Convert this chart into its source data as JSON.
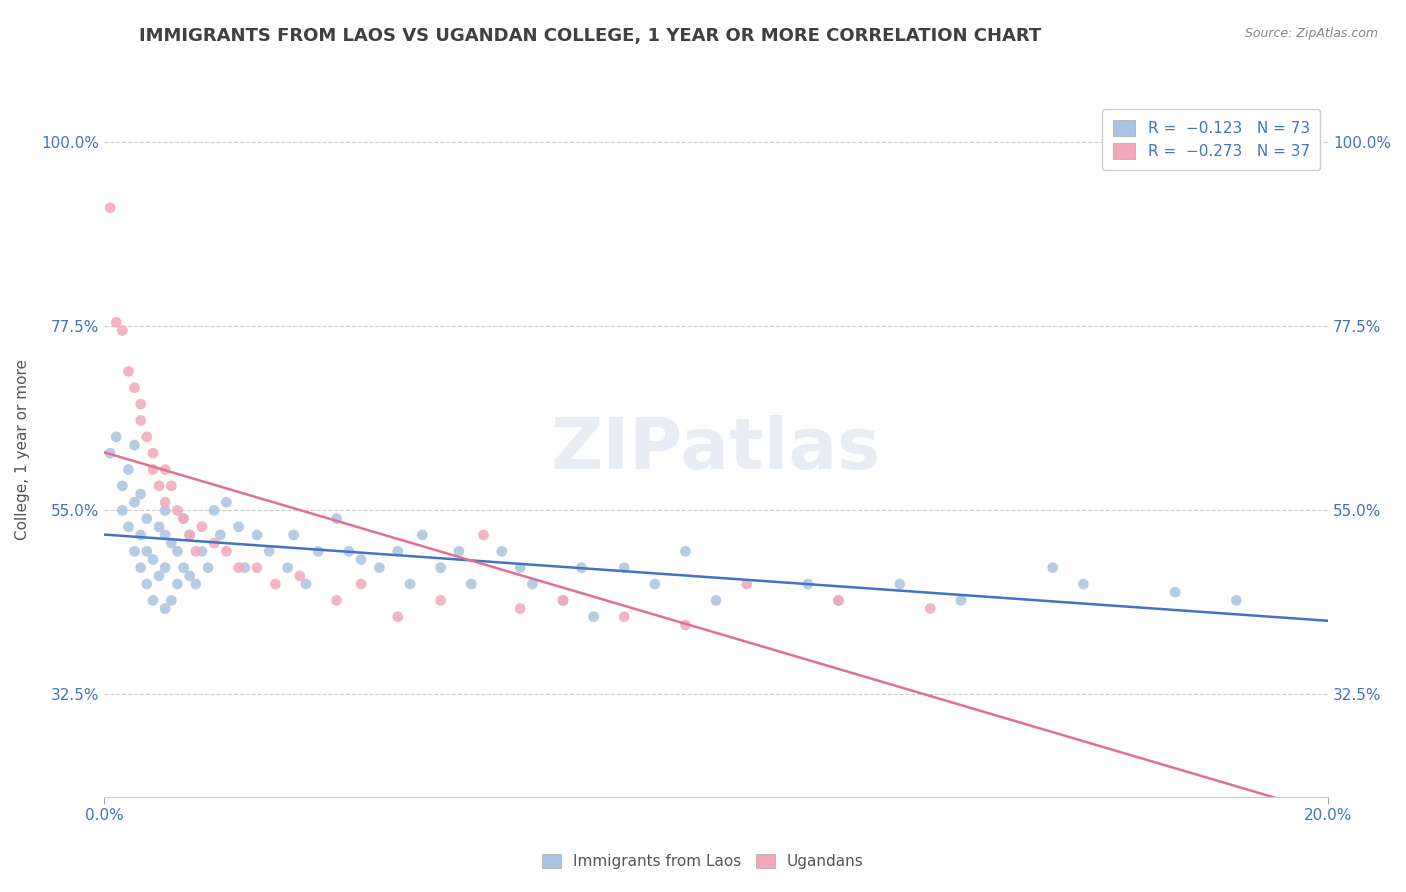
{
  "title": "IMMIGRANTS FROM LAOS VS UGANDAN COLLEGE, 1 YEAR OR MORE CORRELATION CHART",
  "source_text": "Source: ZipAtlas.com",
  "xlabel": "",
  "ylabel": "College, 1 year or more",
  "xlim": [
    0.0,
    0.2
  ],
  "ylim": [
    0.2,
    1.05
  ],
  "xtick_labels": [
    "0.0%",
    "20.0%"
  ],
  "ytick_labels": [
    "32.5%",
    "55.0%",
    "77.5%",
    "100.0%"
  ],
  "ytick_values": [
    0.325,
    0.55,
    0.775,
    1.0
  ],
  "legend_r1": "R = −0.123",
  "legend_n1": "N = 73",
  "legend_r2": "R = −0.273",
  "legend_n2": "N = 37",
  "color_blue": "#a8c4e0",
  "color_pink": "#f4a7b9",
  "line_blue": "#4472c4",
  "line_pink": "#e07090",
  "watermark": "ZIPatlas",
  "title_color": "#404040",
  "axis_color": "#4472c4",
  "background_color": "#ffffff",
  "blue_scatter_x": [
    0.001,
    0.002,
    0.003,
    0.003,
    0.004,
    0.004,
    0.005,
    0.005,
    0.005,
    0.006,
    0.006,
    0.006,
    0.007,
    0.007,
    0.007,
    0.008,
    0.008,
    0.009,
    0.009,
    0.01,
    0.01,
    0.01,
    0.01,
    0.011,
    0.011,
    0.012,
    0.012,
    0.013,
    0.013,
    0.014,
    0.014,
    0.015,
    0.016,
    0.017,
    0.018,
    0.019,
    0.02,
    0.022,
    0.023,
    0.025,
    0.027,
    0.03,
    0.031,
    0.033,
    0.035,
    0.038,
    0.04,
    0.042,
    0.045,
    0.048,
    0.05,
    0.052,
    0.055,
    0.058,
    0.06,
    0.065,
    0.068,
    0.07,
    0.075,
    0.078,
    0.08,
    0.085,
    0.09,
    0.095,
    0.1,
    0.115,
    0.12,
    0.13,
    0.14,
    0.155,
    0.16,
    0.175,
    0.185
  ],
  "blue_scatter_y": [
    0.62,
    0.64,
    0.58,
    0.55,
    0.53,
    0.6,
    0.5,
    0.56,
    0.63,
    0.48,
    0.52,
    0.57,
    0.46,
    0.5,
    0.54,
    0.44,
    0.49,
    0.47,
    0.53,
    0.52,
    0.55,
    0.48,
    0.43,
    0.51,
    0.44,
    0.5,
    0.46,
    0.54,
    0.48,
    0.52,
    0.47,
    0.46,
    0.5,
    0.48,
    0.55,
    0.52,
    0.56,
    0.53,
    0.48,
    0.52,
    0.5,
    0.48,
    0.52,
    0.46,
    0.5,
    0.54,
    0.5,
    0.49,
    0.48,
    0.5,
    0.46,
    0.52,
    0.48,
    0.5,
    0.46,
    0.5,
    0.48,
    0.46,
    0.44,
    0.48,
    0.42,
    0.48,
    0.46,
    0.5,
    0.44,
    0.46,
    0.44,
    0.46,
    0.44,
    0.48,
    0.46,
    0.45,
    0.44
  ],
  "pink_scatter_x": [
    0.001,
    0.002,
    0.003,
    0.004,
    0.005,
    0.006,
    0.006,
    0.007,
    0.008,
    0.008,
    0.009,
    0.01,
    0.01,
    0.011,
    0.012,
    0.013,
    0.014,
    0.015,
    0.016,
    0.018,
    0.02,
    0.022,
    0.025,
    0.028,
    0.032,
    0.038,
    0.042,
    0.048,
    0.055,
    0.062,
    0.068,
    0.075,
    0.085,
    0.095,
    0.105,
    0.12,
    0.135
  ],
  "pink_scatter_y": [
    0.92,
    0.78,
    0.77,
    0.72,
    0.7,
    0.68,
    0.66,
    0.64,
    0.6,
    0.62,
    0.58,
    0.6,
    0.56,
    0.58,
    0.55,
    0.54,
    0.52,
    0.5,
    0.53,
    0.51,
    0.5,
    0.48,
    0.48,
    0.46,
    0.47,
    0.44,
    0.46,
    0.42,
    0.44,
    0.52,
    0.43,
    0.44,
    0.42,
    0.41,
    0.46,
    0.44,
    0.43
  ]
}
